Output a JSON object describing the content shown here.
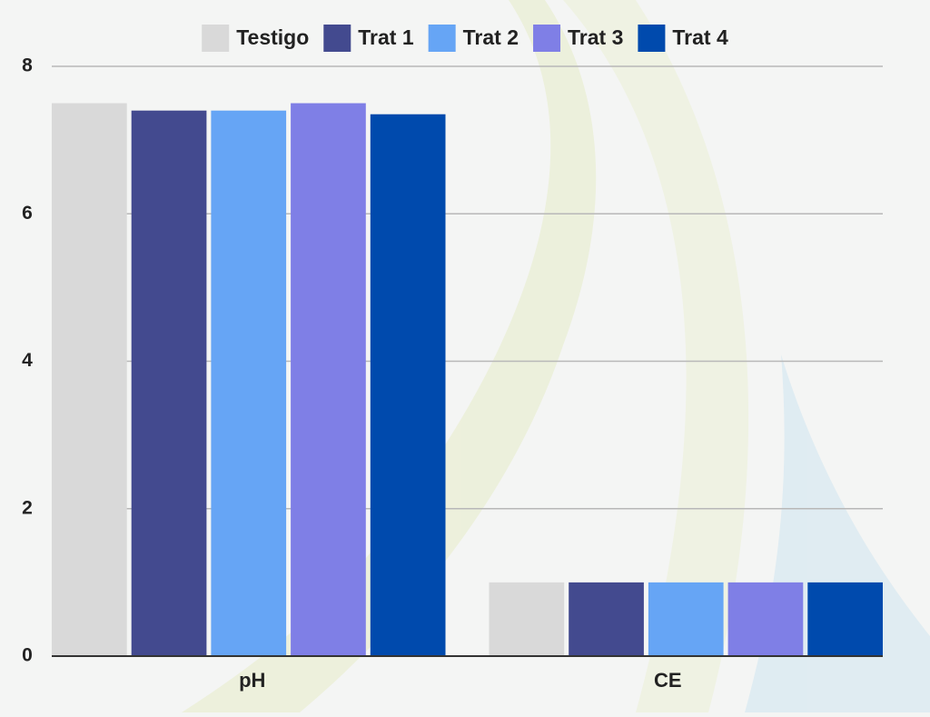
{
  "chart_data": {
    "type": "bar",
    "categories": [
      "pH",
      "CE"
    ],
    "series": [
      {
        "name": "Testigo",
        "color": "#d9d9d9",
        "values": [
          7.5,
          1.0
        ]
      },
      {
        "name": "Trat 1",
        "color": "#434a8f",
        "values": [
          7.4,
          1.0
        ]
      },
      {
        "name": "Trat 2",
        "color": "#66a5f5",
        "values": [
          7.4,
          1.0
        ]
      },
      {
        "name": "Trat 3",
        "color": "#7f7fe6",
        "values": [
          7.5,
          1.0
        ]
      },
      {
        "name": "Trat 4",
        "color": "#004aad",
        "values": [
          7.35,
          1.0
        ]
      }
    ],
    "ylim": [
      0,
      8
    ],
    "yticks": [
      0,
      2,
      4,
      6,
      8
    ],
    "grid": true,
    "legend": "top"
  }
}
